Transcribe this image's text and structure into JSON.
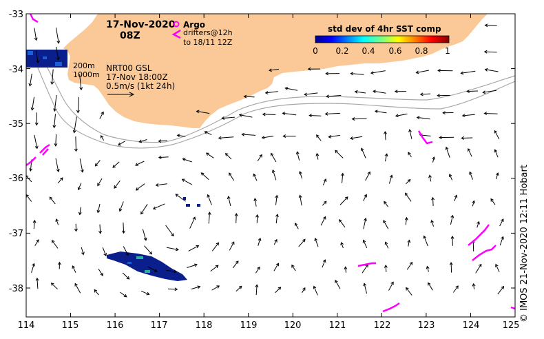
{
  "header": {
    "date": "17-Nov-2020",
    "hour": "08Z"
  },
  "legend": {
    "argo_label": "Argo",
    "drifters_label": "drifters@12h",
    "drifters_sub": "to 18/11 12Z",
    "contour_200": "200m",
    "contour_1000": "1000m",
    "model_line1": "NRT00 GSL",
    "model_line2": "17-Nov 18:00Z",
    "model_line3": "0.5m/s (1kt 24h)"
  },
  "colorbar": {
    "title": "std dev of 4hr SST comp",
    "ticks": [
      "0",
      "0.2",
      "0.4",
      "0.6",
      "0.8",
      "1"
    ]
  },
  "axes": {
    "x_ticks": [
      "114",
      "115",
      "116",
      "117",
      "118",
      "119",
      "120",
      "121",
      "122",
      "123",
      "124",
      "125"
    ],
    "y_ticks": [
      "-33",
      "-34",
      "-35",
      "-36",
      "-37",
      "-38"
    ]
  },
  "credit": "© IMOS 21-Nov-2020 12:11 Hobart",
  "colors": {
    "land": "#fac997",
    "drifter": "#ff00ff",
    "sst_patch": "#0a1e8c",
    "contour": "#a0a0a0"
  }
}
